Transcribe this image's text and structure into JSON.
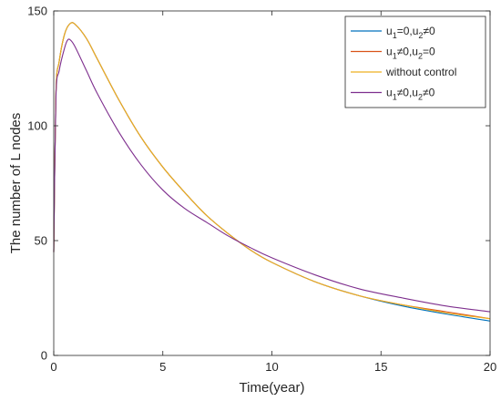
{
  "chart_data": {
    "type": "line",
    "title": "",
    "xlabel": "Time(year)",
    "ylabel": "The number of L nodes",
    "xlim": [
      0,
      20
    ],
    "ylim": [
      0,
      150
    ],
    "xticks": [
      "0",
      "5",
      "10",
      "15",
      "20"
    ],
    "yticks": [
      "0",
      "50",
      "100",
      "150"
    ],
    "grid": false,
    "legend_position": "top-right",
    "series": [
      {
        "name": "u1=0,u2≠0",
        "legend": {
          "b1": "u",
          "s1": "1",
          "m": "=0,u",
          "s2": "2",
          "e": "≠0"
        },
        "color": "#0072BD",
        "x": [
          0,
          0.1,
          0.25,
          0.5,
          0.75,
          1,
          1.5,
          2,
          3,
          4,
          5,
          6,
          7,
          8,
          9,
          10,
          12,
          14,
          16,
          18,
          20
        ],
        "y": [
          45,
          114,
          128,
          140,
          144.5,
          144,
          138,
          129,
          111,
          95,
          82,
          71,
          61,
          53,
          46,
          40.5,
          32,
          26,
          21.5,
          18,
          15
        ]
      },
      {
        "name": "u1≠0,u2=0",
        "legend": {
          "b1": "u",
          "s1": "1",
          "m": "≠0,u",
          "s2": "2",
          "e": "=0"
        },
        "color": "#D95319",
        "x": [
          0,
          0.1,
          0.25,
          0.5,
          0.75,
          1,
          1.5,
          2,
          3,
          4,
          5,
          6,
          7,
          8,
          9,
          10,
          12,
          14,
          16,
          18,
          20
        ],
        "y": [
          45,
          114,
          128,
          140,
          144.5,
          144,
          138,
          129,
          111,
          95,
          82,
          71,
          61,
          53,
          46,
          40.5,
          32,
          26,
          22,
          19,
          16
        ]
      },
      {
        "name": "without control",
        "legend": {
          "b1": "without control",
          "s1": "",
          "m": "",
          "s2": "",
          "e": ""
        },
        "color": "#EDB120",
        "x": [
          0,
          0.1,
          0.25,
          0.5,
          0.75,
          1,
          1.5,
          2,
          3,
          4,
          5,
          6,
          7,
          8,
          9,
          10,
          12,
          14,
          16,
          18,
          20
        ],
        "y": [
          45,
          114,
          128,
          140,
          144.5,
          144,
          138,
          129,
          111,
          95,
          82,
          71,
          61,
          53,
          46,
          40.5,
          32,
          26,
          22,
          18.5,
          16
        ]
      },
      {
        "name": "u1≠0,u2≠0",
        "legend": {
          "b1": "u",
          "s1": "1",
          "m": "≠0,u",
          "s2": "2",
          "e": "≠0"
        },
        "color": "#7E2F8E",
        "x": [
          0,
          0.1,
          0.25,
          0.5,
          0.65,
          0.8,
          1,
          1.5,
          2,
          3,
          4,
          5,
          6,
          7,
          8,
          9,
          10,
          12,
          14,
          16,
          18,
          20
        ],
        "y": [
          45,
          112,
          124,
          134,
          137.5,
          137,
          134,
          124,
          114,
          97,
          83,
          72,
          64,
          58,
          52,
          47,
          42.5,
          35,
          29,
          25,
          21.5,
          19
        ]
      }
    ]
  }
}
